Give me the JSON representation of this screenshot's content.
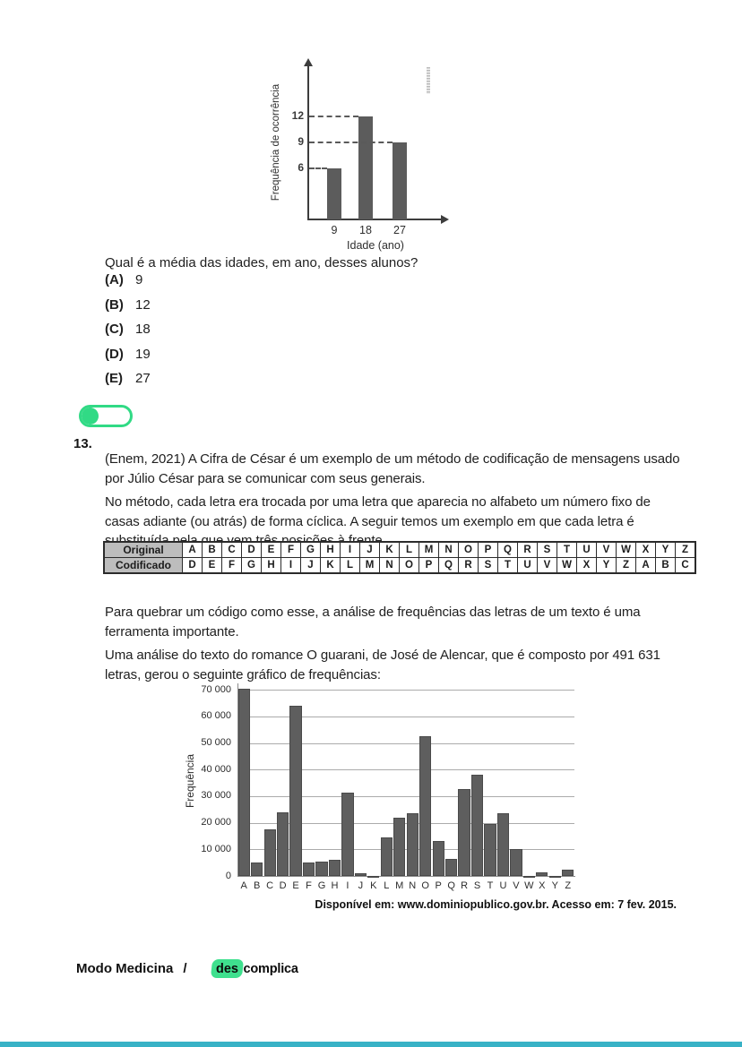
{
  "q12": {
    "question": "Qual é a média das idades, em ano, desses alunos?",
    "options": [
      {
        "letter": "(A)",
        "value": "9"
      },
      {
        "letter": "(B)",
        "value": "12"
      },
      {
        "letter": "(C)",
        "value": "18"
      },
      {
        "letter": "(D)",
        "value": "19"
      },
      {
        "letter": "(E)",
        "value": "27"
      }
    ]
  },
  "q13": {
    "number": "13.",
    "paragraphs": [
      "(Enem, 2021) A Cifra de César é um exemplo de um método de codificação de mensagens usado por Júlio César para se comunicar com seus generais.",
      "No método, cada letra era trocada por uma letra que aparecia no alfabeto um número fixo de casas adiante (ou atrás) de forma cíclica. A seguir temos um exemplo em que cada letra é substituída pela que vem três posições à frente.",
      "Para quebrar um código como esse, a análise de frequências das letras de um texto é uma ferramenta importante.",
      "Uma análise do texto do romance O guarani, de José de Alencar, que é composto por 491 631 letras, gerou o seguinte gráfico de frequências:"
    ],
    "cipher_table": {
      "rows": [
        {
          "header": "Original",
          "cells": [
            "A",
            "B",
            "C",
            "D",
            "E",
            "F",
            "G",
            "H",
            "I",
            "J",
            "K",
            "L",
            "M",
            "N",
            "O",
            "P",
            "Q",
            "R",
            "S",
            "T",
            "U",
            "V",
            "W",
            "X",
            "Y",
            "Z"
          ]
        },
        {
          "header": "Codificado",
          "cells": [
            "D",
            "E",
            "F",
            "G",
            "H",
            "I",
            "J",
            "K",
            "L",
            "M",
            "N",
            "O",
            "P",
            "Q",
            "R",
            "S",
            "T",
            "U",
            "V",
            "W",
            "X",
            "Y",
            "Z",
            "A",
            "B",
            "C"
          ]
        }
      ]
    },
    "source": "Disponível em: www.dominiopublico.gov.br. Acesso em: 7 fev. 2015."
  },
  "footer": {
    "brand": "Modo Medicina",
    "separator": "/",
    "logo_prefix": "des",
    "logo_suffix": "complica"
  },
  "colors": {
    "bar_gray": "#5c5c5c",
    "accent_green": "#31da85",
    "logo_green": "#3fe08e",
    "bottom_bar_teal": "#38b2c6",
    "table_header_gray": "#bdbdbd"
  },
  "chart_data": [
    {
      "type": "bar",
      "title": "",
      "categories": [
        "9",
        "18",
        "27"
      ],
      "values": [
        6,
        12,
        9
      ],
      "xlabel": "Idade (ano)",
      "ylabel": "Frequência de ocorrência",
      "yticks": [
        6,
        9,
        12
      ],
      "ylim": [
        0,
        14
      ],
      "grid": false,
      "dashed_guides": true,
      "bar_color": "#5c5c5c"
    },
    {
      "type": "bar",
      "title": "",
      "categories": [
        "A",
        "B",
        "C",
        "D",
        "E",
        "F",
        "G",
        "H",
        "I",
        "J",
        "K",
        "L",
        "M",
        "N",
        "O",
        "P",
        "Q",
        "R",
        "S",
        "T",
        "U",
        "V",
        "W",
        "X",
        "Y",
        "Z"
      ],
      "values": [
        70500,
        5000,
        17500,
        24000,
        64000,
        5000,
        5300,
        6000,
        31300,
        1000,
        100,
        14500,
        21800,
        23500,
        52500,
        13000,
        6500,
        32500,
        38000,
        19500,
        23500,
        10000,
        100,
        1400,
        100,
        2300
      ],
      "xlabel": "",
      "ylabel": "Frequência",
      "ytick_labels": [
        "0",
        "10 000",
        "20 000",
        "30 000",
        "40 000",
        "50 000",
        "60 000",
        "70 000"
      ],
      "ylim": [
        0,
        70000
      ],
      "ytick_step": 10000,
      "grid": true,
      "bar_color": "#5e5e5e"
    }
  ]
}
